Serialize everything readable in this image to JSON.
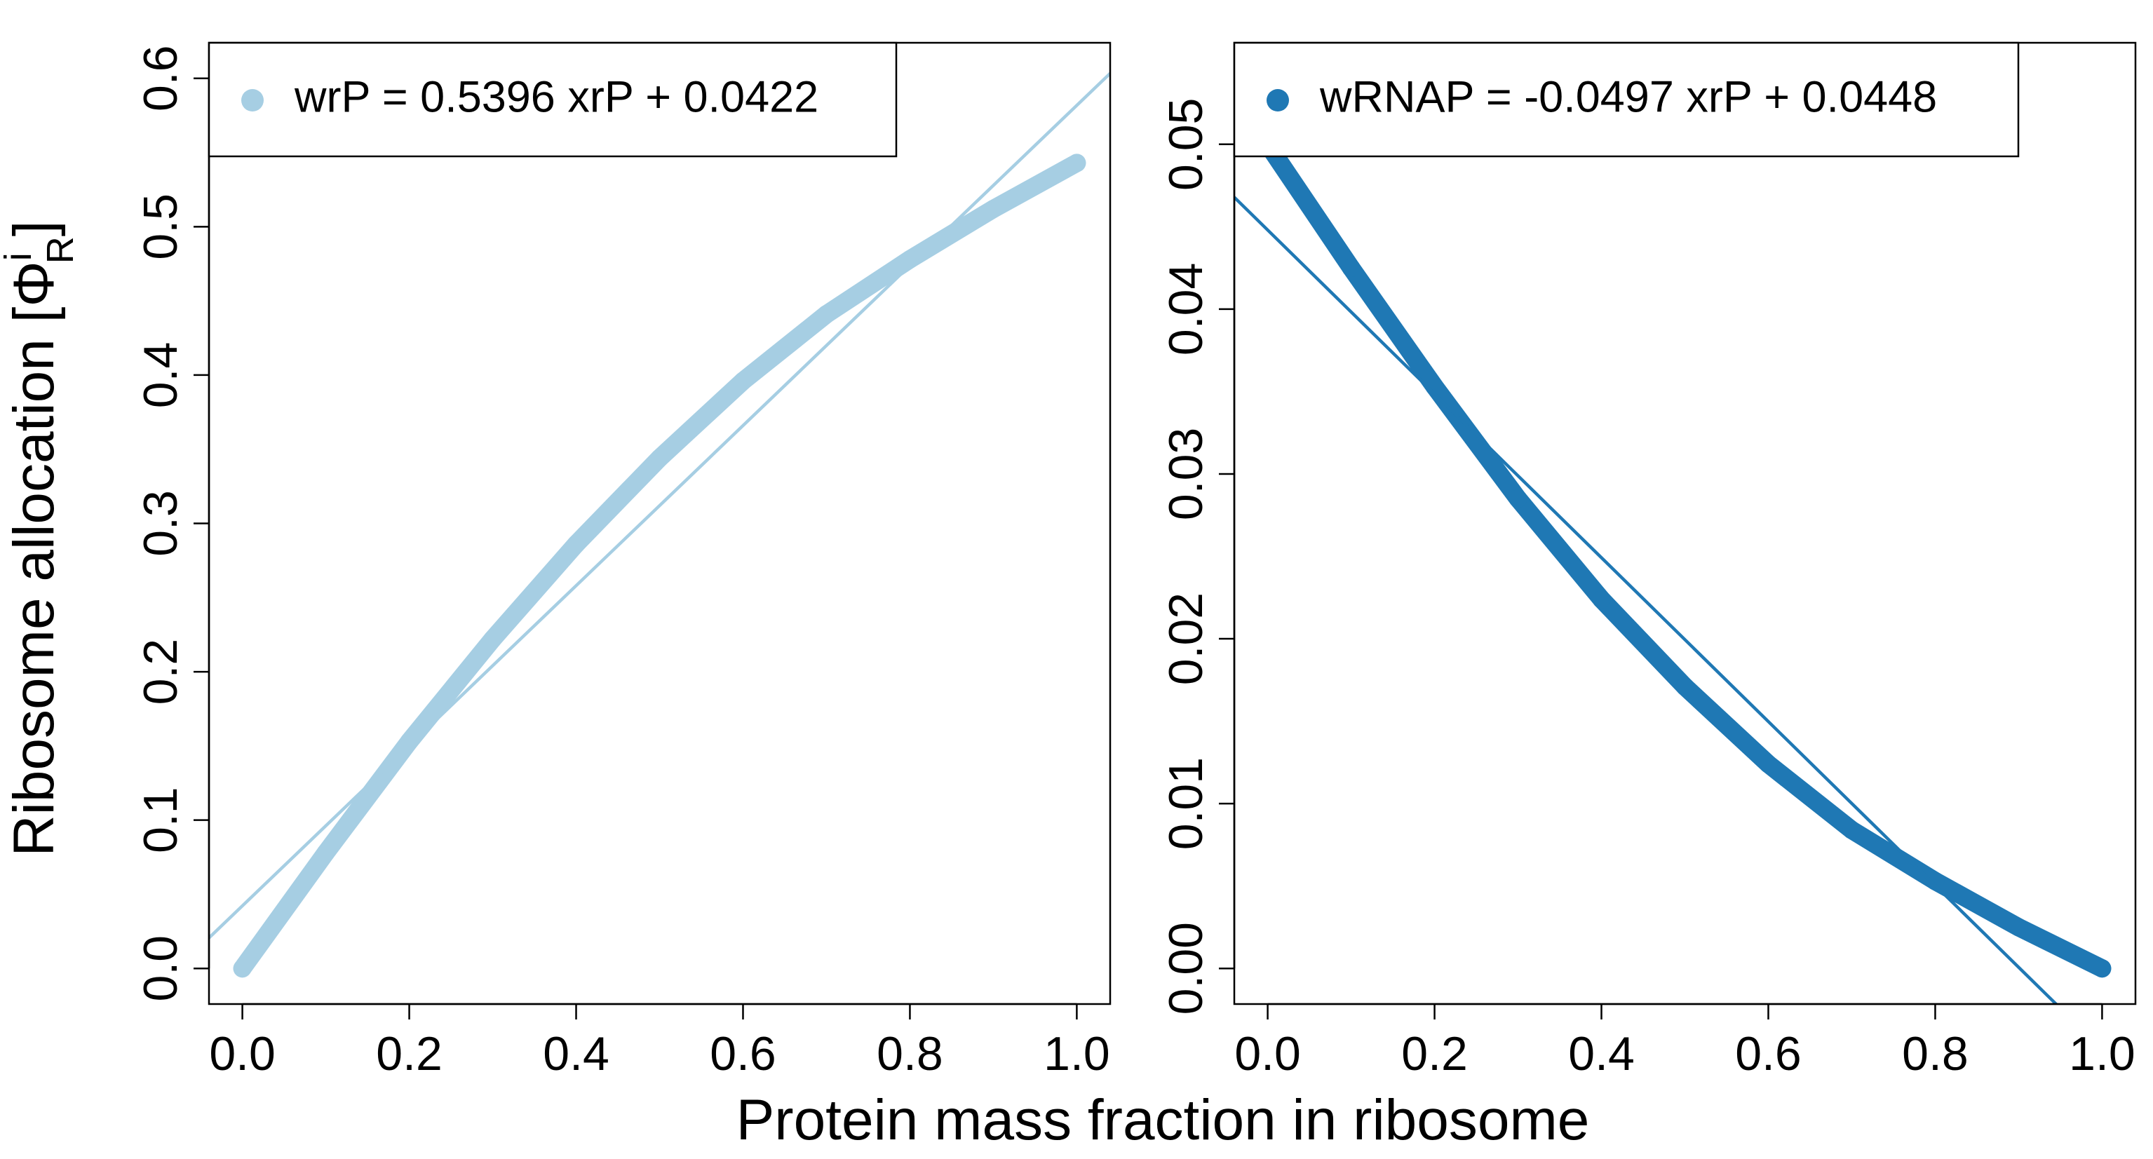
{
  "figure": {
    "xlabel": "Protein mass fraction in ribosome",
    "ylabel_main": "Ribosome allocation [Φ",
    "ylabel_superscript": "i",
    "ylabel_subscript": "R",
    "ylabel_close": "]"
  },
  "chart_data": [
    {
      "type": "line",
      "panel": "left",
      "legend": "wrP = 0.5396 xrP + 0.0422",
      "legend_placement": "top-left",
      "color": "#A6CEE3",
      "xlim": [
        -0.04,
        1.04
      ],
      "ylim": [
        -0.024,
        0.624
      ],
      "x_ticks": [
        0.0,
        0.2,
        0.4,
        0.6,
        0.8,
        1.0
      ],
      "x_tick_labels": [
        "0.0",
        "0.2",
        "0.4",
        "0.6",
        "0.8",
        "1.0"
      ],
      "y_ticks": [
        0.0,
        0.1,
        0.2,
        0.3,
        0.4,
        0.5,
        0.6
      ],
      "y_tick_labels": [
        "0.0",
        "0.1",
        "0.2",
        "0.3",
        "0.4",
        "0.5",
        "0.6"
      ],
      "grid": false,
      "series": [
        {
          "kind": "points",
          "x": [
            0.0,
            0.1,
            0.2,
            0.3,
            0.4,
            0.5,
            0.6,
            0.7,
            0.8,
            0.9,
            1.0
          ],
          "y": [
            0.0,
            0.078,
            0.153,
            0.222,
            0.286,
            0.344,
            0.396,
            0.441,
            0.478,
            0.512,
            0.543
          ]
        },
        {
          "kind": "fit",
          "slope": 0.5396,
          "intercept": 0.0422
        }
      ]
    },
    {
      "type": "line",
      "panel": "right",
      "legend": "wRNAP = -0.0497 xrP + 0.0448",
      "legend_placement": "top-left",
      "color": "#1F78B4",
      "xlim": [
        -0.04,
        1.04
      ],
      "ylim": [
        -0.00216,
        0.05616
      ],
      "x_ticks": [
        0.0,
        0.2,
        0.4,
        0.6,
        0.8,
        1.0
      ],
      "x_tick_labels": [
        "0.0",
        "0.2",
        "0.4",
        "0.6",
        "0.8",
        "1.0"
      ],
      "y_ticks": [
        0.0,
        0.01,
        0.02,
        0.03,
        0.04,
        0.05
      ],
      "y_tick_labels": [
        "0.00",
        "0.01",
        "0.02",
        "0.03",
        "0.04",
        "0.05"
      ],
      "grid": false,
      "series": [
        {
          "kind": "points",
          "x": [
            0.0,
            0.1,
            0.2,
            0.3,
            0.4,
            0.5,
            0.6,
            0.7,
            0.8,
            0.9,
            1.0
          ],
          "y": [
            0.05,
            0.0425,
            0.0353,
            0.0285,
            0.0224,
            0.0171,
            0.0124,
            0.0084,
            0.0053,
            0.0025,
            0.0
          ]
        },
        {
          "kind": "fit",
          "slope": -0.0497,
          "intercept": 0.0448
        }
      ]
    }
  ]
}
